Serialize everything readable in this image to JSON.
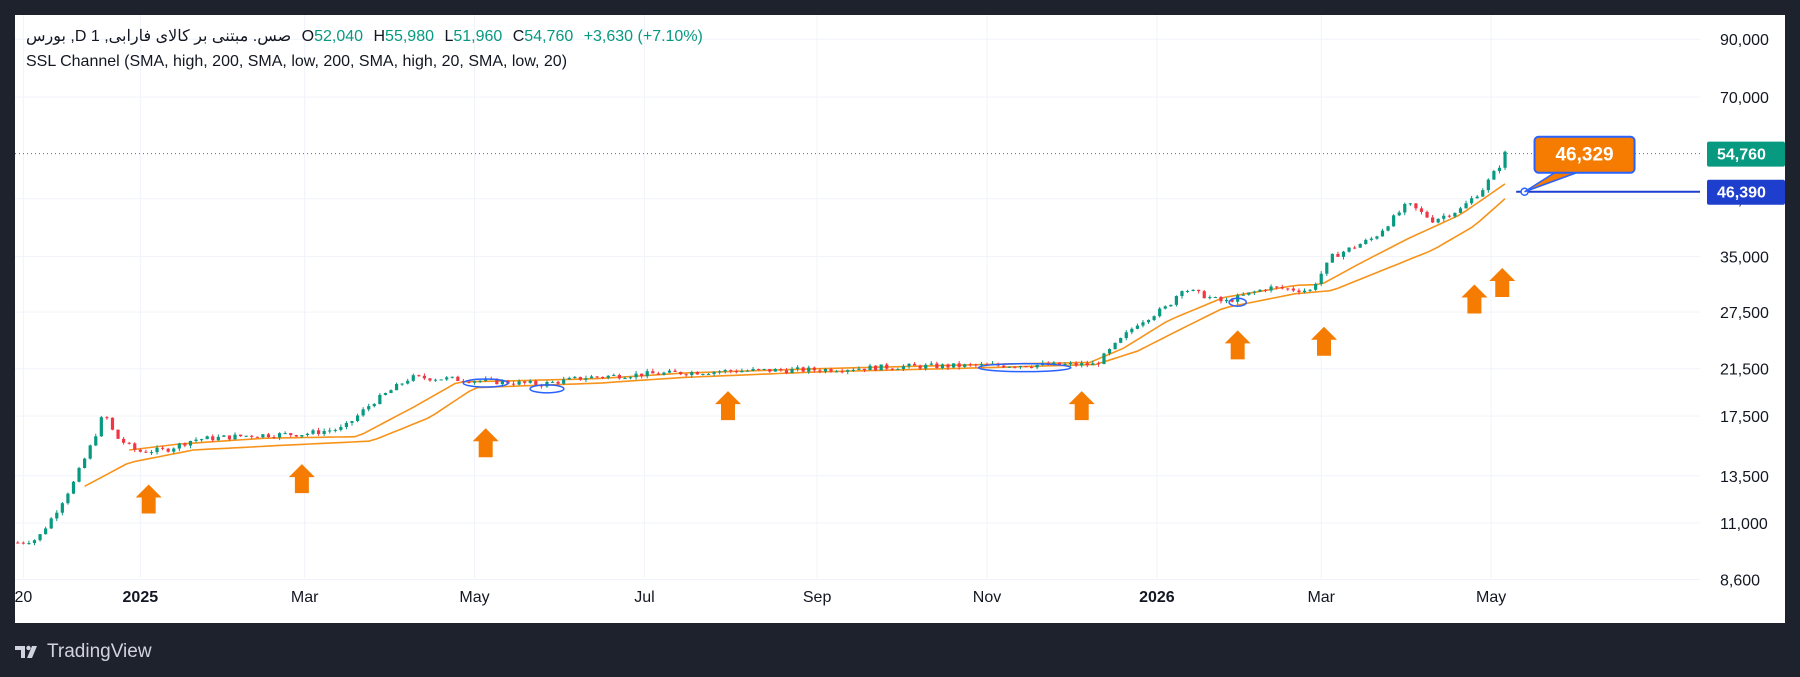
{
  "header": {
    "symbol": "بورس ,D صس. مبتنی بر کالای فارابی, 1",
    "o_label": "O",
    "o": "52,040",
    "h_label": "H",
    "h": "55,980",
    "l_label": "L",
    "l": "51,960",
    "c_label": "C",
    "c": "54,760",
    "change": "+3,630 (+7.10%)",
    "indicator": "SSL Channel (SMA, high, 200, SMA, low, 200, SMA, high, 20, SMA, low, 20)"
  },
  "footer": {
    "brand": "TradingView"
  },
  "colors": {
    "up": "#089981",
    "down": "#f23645",
    "channel": "#f7931a",
    "arrow": "#f57c00",
    "price_tag": "#089981",
    "line_tag": "#1e3fce",
    "callout": "#f57c00",
    "callout_border": "#2962ff",
    "blue_mark": "#2962ff",
    "background": "#ffffff",
    "frame": "#1e222d"
  },
  "chart_data": {
    "type": "candlestick",
    "y_scale": "log",
    "y_ticks": [
      "8,600",
      "11,000",
      "13,500",
      "17,500",
      "21,500",
      "27,500",
      "35,000",
      "45,000",
      "70,000",
      "90,000"
    ],
    "y_tick_values": [
      8600,
      11000,
      13500,
      17500,
      21500,
      27500,
      35000,
      45000,
      70000,
      90000
    ],
    "x_ticks": [
      "20",
      "2025",
      "Mar",
      "May",
      "Jul",
      "Sep",
      "Nov",
      "2026",
      "Mar",
      "May"
    ],
    "x_tick_dates": [
      "2024-11-20",
      "2025-01-01",
      "2025-03-01",
      "2025-05-01",
      "2025-07-01",
      "2025-09-01",
      "2025-11-01",
      "2026-01-01",
      "2026-03-01",
      "2026-05-01"
    ],
    "x_range": [
      "2024-11-17",
      "2026-07-15"
    ],
    "y_range": [
      7600,
      100000
    ],
    "last_price": 54760,
    "last_price_label": "54,760",
    "horizontal_line": {
      "value": 46390,
      "label": "46,390",
      "start_date": "2026-05-10"
    },
    "callout": {
      "label": "46,329",
      "date": "2026-05-13"
    },
    "price_anchors": [
      [
        "2024-11-18",
        10100
      ],
      [
        "2024-11-25",
        10250
      ],
      [
        "2024-12-01",
        11400
      ],
      [
        "2024-12-08",
        13100
      ],
      [
        "2024-12-15",
        15700
      ],
      [
        "2024-12-19",
        17800
      ],
      [
        "2024-12-23",
        16000
      ],
      [
        "2024-12-31",
        15000
      ],
      [
        "2025-01-10",
        15100
      ],
      [
        "2025-01-20",
        15800
      ],
      [
        "2025-02-10",
        16100
      ],
      [
        "2025-03-01",
        16200
      ],
      [
        "2025-03-15",
        16600
      ],
      [
        "2025-03-25",
        18500
      ],
      [
        "2025-04-08",
        20700
      ],
      [
        "2025-04-20",
        20600
      ],
      [
        "2025-05-10",
        20300
      ],
      [
        "2025-05-25",
        20100
      ],
      [
        "2025-06-10",
        20700
      ],
      [
        "2025-07-01",
        21000
      ],
      [
        "2025-08-01",
        21300
      ],
      [
        "2025-09-01",
        21400
      ],
      [
        "2025-10-01",
        21700
      ],
      [
        "2025-11-01",
        21800
      ],
      [
        "2025-12-10",
        21900
      ],
      [
        "2025-12-25",
        26200
      ],
      [
        "2026-01-05",
        28200
      ],
      [
        "2026-01-10",
        30500
      ],
      [
        "2026-01-25",
        28700
      ],
      [
        "2026-02-10",
        30600
      ],
      [
        "2026-02-25",
        30200
      ],
      [
        "2026-03-05",
        35000
      ],
      [
        "2026-03-20",
        38000
      ],
      [
        "2026-04-01",
        44000
      ],
      [
        "2026-04-10",
        41000
      ],
      [
        "2026-04-20",
        43000
      ],
      [
        "2026-04-28",
        47000
      ],
      [
        "2026-05-04",
        52000
      ],
      [
        "2026-05-06",
        54760
      ]
    ],
    "ssl_high_anchors": [
      [
        "2024-12-28",
        15100
      ],
      [
        "2025-01-15",
        15500
      ],
      [
        "2025-02-15",
        15900
      ],
      [
        "2025-03-20",
        16000
      ],
      [
        "2025-04-10",
        18300
      ],
      [
        "2025-04-25",
        20300
      ],
      [
        "2025-05-15",
        20400
      ],
      [
        "2025-06-15",
        20600
      ],
      [
        "2025-07-15",
        21100
      ],
      [
        "2025-09-01",
        21500
      ],
      [
        "2025-11-01",
        21900
      ],
      [
        "2025-12-08",
        22100
      ],
      [
        "2025-12-20",
        23500
      ],
      [
        "2026-01-05",
        26500
      ],
      [
        "2026-01-25",
        29300
      ],
      [
        "2026-02-20",
        30900
      ],
      [
        "2026-03-01",
        31000
      ],
      [
        "2026-03-15",
        34000
      ],
      [
        "2026-04-01",
        37800
      ],
      [
        "2026-04-20",
        42000
      ],
      [
        "2026-05-06",
        48000
      ]
    ],
    "ssl_low_anchors": [
      [
        "2024-12-12",
        12900
      ],
      [
        "2024-12-28",
        14300
      ],
      [
        "2025-01-20",
        15100
      ],
      [
        "2025-02-20",
        15400
      ],
      [
        "2025-03-25",
        15700
      ],
      [
        "2025-04-15",
        17400
      ],
      [
        "2025-05-01",
        19800
      ],
      [
        "2025-06-15",
        20200
      ],
      [
        "2025-07-15",
        20700
      ],
      [
        "2025-09-01",
        21200
      ],
      [
        "2025-11-01",
        21600
      ],
      [
        "2025-12-10",
        21900
      ],
      [
        "2025-12-25",
        23200
      ],
      [
        "2026-01-10",
        25600
      ],
      [
        "2026-01-25",
        28000
      ],
      [
        "2026-02-20",
        29800
      ],
      [
        "2026-03-05",
        30200
      ],
      [
        "2026-03-20",
        32500
      ],
      [
        "2026-04-10",
        36000
      ],
      [
        "2026-04-25",
        40000
      ],
      [
        "2026-05-06",
        45000
      ]
    ],
    "arrow_markers": [
      [
        "2025-01-04",
        13000
      ],
      [
        "2025-02-28",
        14200
      ],
      [
        "2025-05-05",
        16600
      ],
      [
        "2025-07-31",
        19500
      ],
      [
        "2025-12-05",
        19500
      ],
      [
        "2026-01-30",
        25400
      ],
      [
        "2026-03-02",
        25800
      ],
      [
        "2026-04-25",
        31000
      ],
      [
        "2026-05-05",
        33300
      ]
    ],
    "blue_marks": [
      [
        "2025-04-28",
        "2025-05-12",
        20200
      ],
      [
        "2025-05-22",
        "2025-06-01",
        19700
      ],
      [
        "2025-10-30",
        "2025-11-30",
        21600
      ],
      [
        "2026-01-28",
        "2026-02-01",
        28700
      ]
    ]
  }
}
